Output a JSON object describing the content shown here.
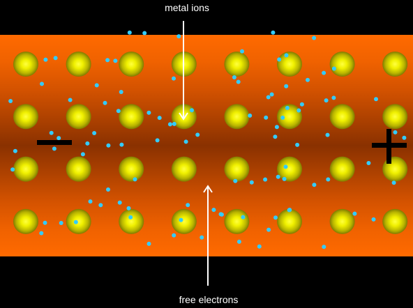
{
  "labels": {
    "top": "metal ions",
    "bottom": "free electrons"
  },
  "terminals": {
    "negative": "−",
    "positive": "+"
  },
  "lattice": {
    "rows": 4,
    "columns": 8
  },
  "colors": {
    "background": "#000000",
    "conductor_light": "#ff6a00",
    "conductor_dark": "#8a3100",
    "ion_core": "#ffff33",
    "ion_edge": "#8a8a00",
    "electron": "#33ccff",
    "arrow": "#ffffff",
    "terminal": "#000000"
  },
  "electron_count": 100
}
